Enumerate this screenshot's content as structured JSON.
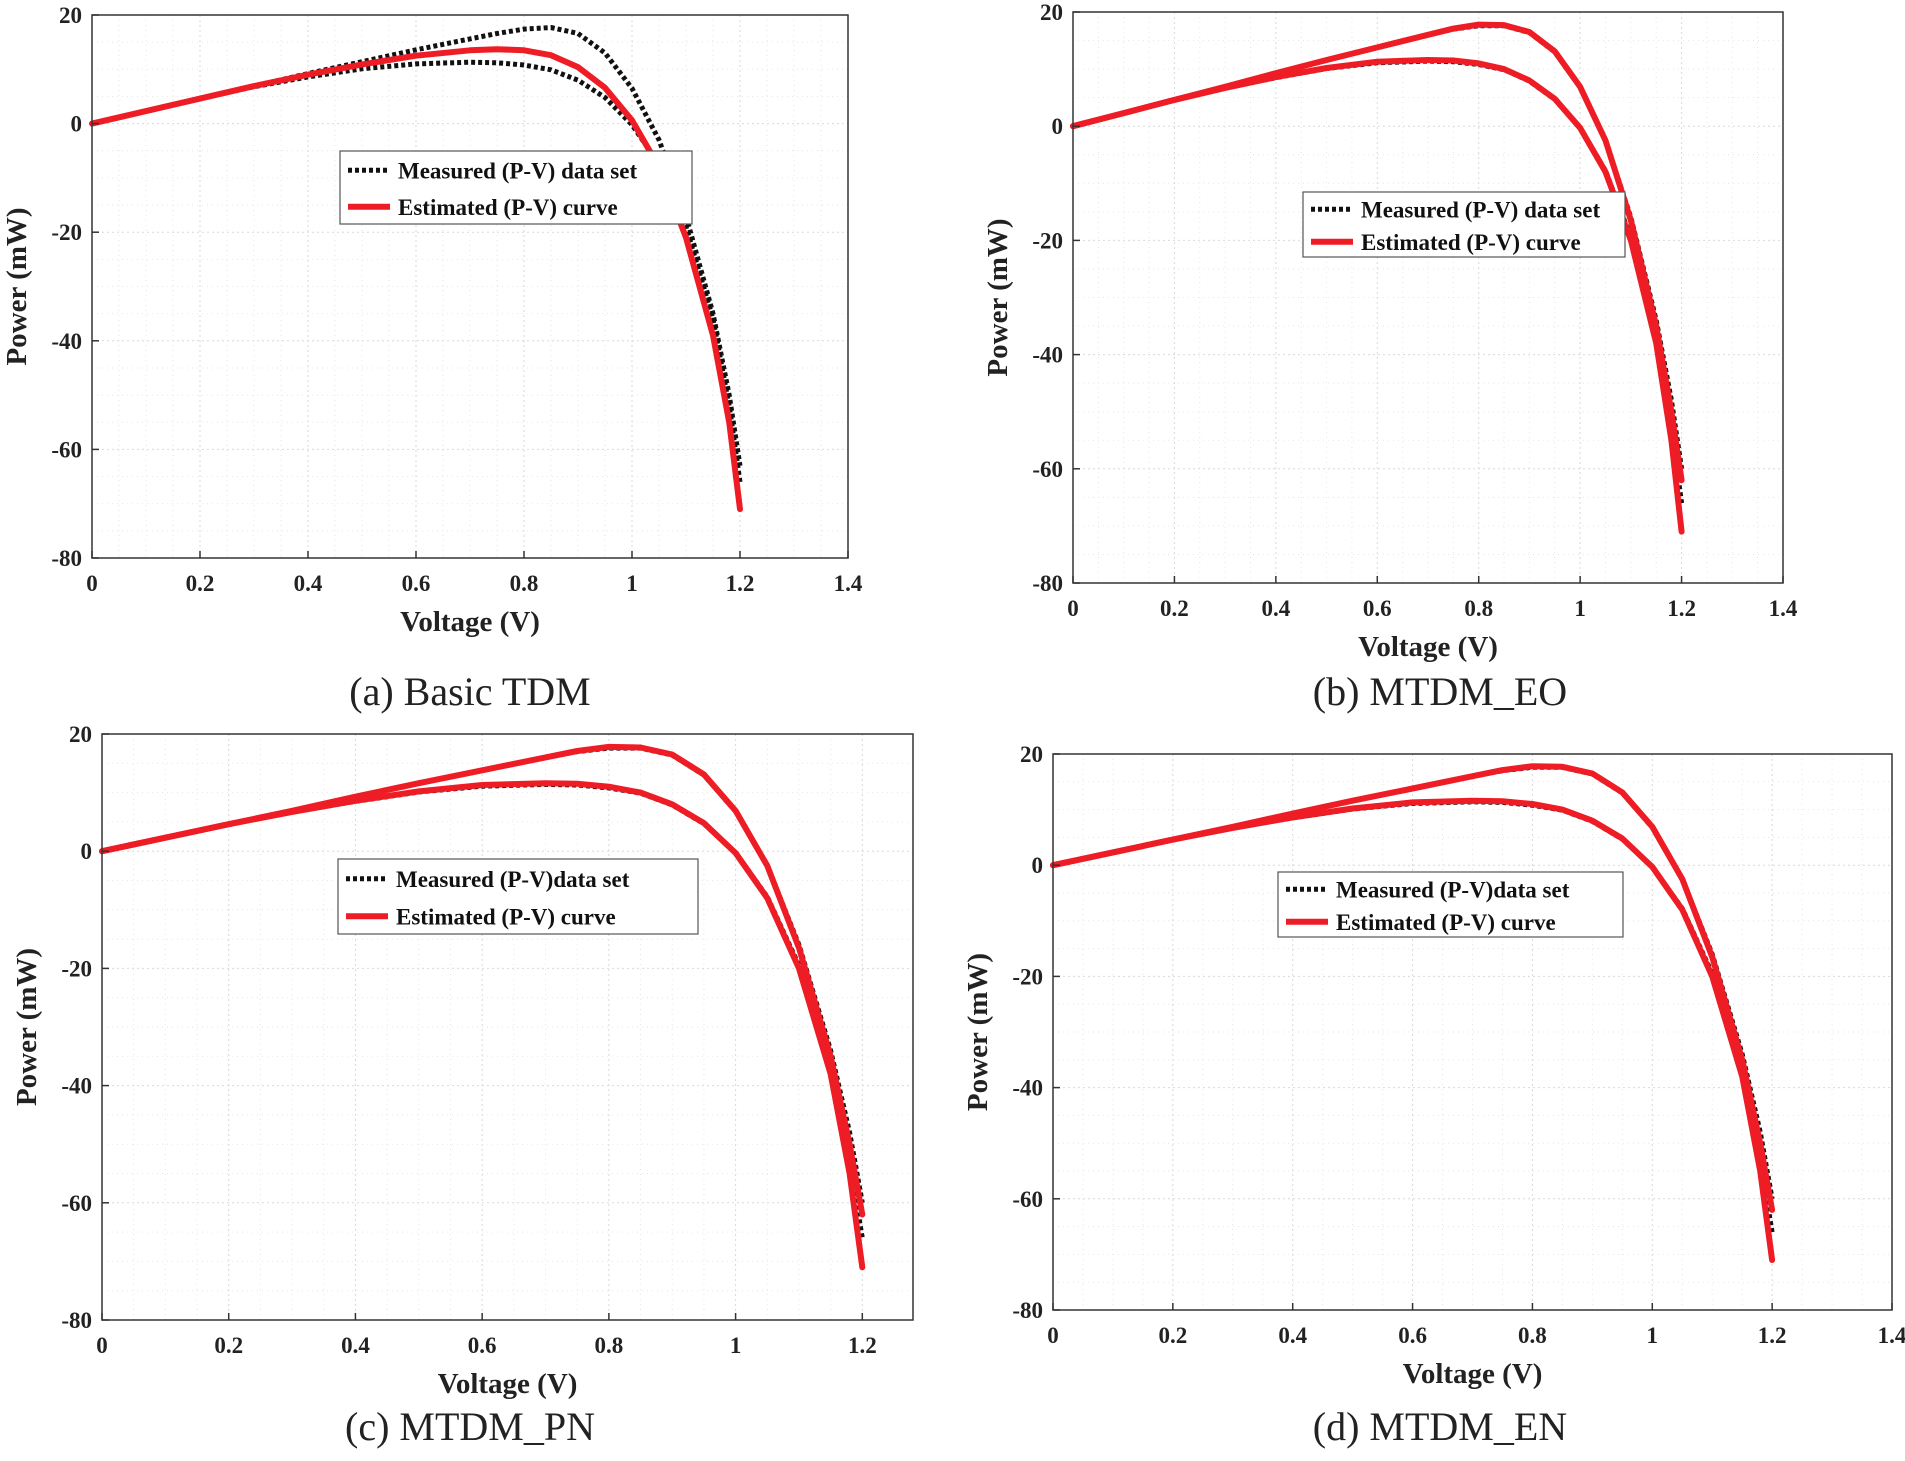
{
  "colors": {
    "measured": "#111111",
    "estimated": "#ee1c24",
    "grid": "#d9d9d9",
    "axes": "#333333"
  },
  "chart_data": [
    {
      "type": "line",
      "caption": "(a) Basic TDM",
      "xlabel": "Voltage (V)",
      "ylabel": "Power (mW)",
      "xlim": [
        0,
        1.4
      ],
      "ylim": [
        -80,
        20
      ],
      "xticks": [
        0,
        0.2,
        0.4,
        0.6,
        0.8,
        1,
        1.2,
        1.4
      ],
      "xtick_labels": [
        "0",
        "0.2",
        "0.4",
        "0.6",
        "0.8",
        "1",
        "1.2",
        "1.4"
      ],
      "yticks": [
        -80,
        -60,
        -40,
        -20,
        0,
        20
      ],
      "ytick_labels": [
        "-80",
        "-60",
        "-40",
        "-20",
        "0",
        "20"
      ],
      "grid": true,
      "legend": {
        "position": "center",
        "entries": [
          "Measured (P-V) data set",
          "Estimated (P-V) curve"
        ]
      },
      "series": [
        {
          "name": "Measured (P-V) data set",
          "style": "dotted",
          "color": "measured",
          "x": [
            0,
            0.1,
            0.2,
            0.3,
            0.4,
            0.5,
            0.6,
            0.7,
            0.75,
            0.8,
            0.85,
            0.9,
            0.95,
            1.0,
            1.05,
            1.1,
            1.15,
            1.18,
            1.2
          ],
          "y": [
            0,
            2.3,
            4.6,
            6.9,
            9.2,
            11.4,
            13.6,
            15.6,
            16.6,
            17.4,
            17.7,
            16.6,
            13.0,
            6.5,
            -3.0,
            -17.0,
            -35.0,
            -50.0,
            -63.0
          ]
        },
        {
          "name": "Measured (P-V) data set",
          "style": "dotted",
          "color": "measured",
          "x": [
            0,
            0.1,
            0.2,
            0.3,
            0.4,
            0.5,
            0.6,
            0.7,
            0.75,
            0.8,
            0.85,
            0.9,
            0.95,
            1.0,
            1.05,
            1.1,
            1.15,
            1.18,
            1.2
          ],
          "y": [
            0,
            2.3,
            4.6,
            6.8,
            8.6,
            10.1,
            11.0,
            11.3,
            11.2,
            10.8,
            9.9,
            8.0,
            4.8,
            -0.2,
            -7.5,
            -19.0,
            -36.0,
            -52.0,
            -66.0
          ]
        },
        {
          "name": "Estimated (P-V) curve",
          "style": "solid",
          "color": "estimated",
          "x": [
            0,
            0.1,
            0.2,
            0.3,
            0.4,
            0.5,
            0.6,
            0.7,
            0.75,
            0.8,
            0.85,
            0.9,
            0.95,
            1.0,
            1.05,
            1.1,
            1.15,
            1.18,
            1.2
          ],
          "y": [
            0,
            2.3,
            4.6,
            6.9,
            9.0,
            10.9,
            12.5,
            13.5,
            13.7,
            13.5,
            12.6,
            10.4,
            6.6,
            0.6,
            -8.0,
            -21.0,
            -39.0,
            -55.0,
            -71.0
          ]
        }
      ]
    },
    {
      "type": "line",
      "caption": "(b) MTDM_EO",
      "xlabel": "Voltage (V)",
      "ylabel": "Power (mW)",
      "xlim": [
        0,
        1.4
      ],
      "ylim": [
        -80,
        20
      ],
      "xticks": [
        0,
        0.2,
        0.4,
        0.6,
        0.8,
        1,
        1.2,
        1.4
      ],
      "xtick_labels": [
        "0",
        "0.2",
        "0.4",
        "0.6",
        "0.8",
        "1",
        "1.2",
        "1.4"
      ],
      "yticks": [
        -80,
        -60,
        -40,
        -20,
        0,
        20
      ],
      "ytick_labels": [
        "-80",
        "-60",
        "-40",
        "-20",
        "0",
        "20"
      ],
      "grid": true,
      "legend": {
        "position": "center-right",
        "entries": [
          "Measured (P-V) data set",
          "Estimated (P-V) curve"
        ]
      },
      "series": [
        {
          "name": "Measured (P-V) data set",
          "style": "dotted",
          "color": "measured",
          "x": [
            0,
            0.1,
            0.2,
            0.3,
            0.4,
            0.5,
            0.6,
            0.7,
            0.75,
            0.8,
            0.85,
            0.9,
            0.95,
            1.0,
            1.05,
            1.1,
            1.15,
            1.18,
            1.2
          ],
          "y": [
            0,
            2.3,
            4.6,
            6.9,
            9.3,
            11.6,
            13.8,
            16.0,
            17.0,
            17.6,
            17.6,
            16.4,
            13.0,
            6.8,
            -2.5,
            -16.0,
            -34.0,
            -48.0,
            -60.0
          ]
        },
        {
          "name": "Measured (P-V) data set",
          "style": "dotted",
          "color": "measured",
          "x": [
            0,
            0.1,
            0.2,
            0.3,
            0.4,
            0.5,
            0.6,
            0.7,
            0.75,
            0.8,
            0.85,
            0.9,
            0.95,
            1.0,
            1.05,
            1.1,
            1.15,
            1.18,
            1.2
          ],
          "y": [
            0,
            2.3,
            4.6,
            6.7,
            8.5,
            10.1,
            11.1,
            11.4,
            11.3,
            10.8,
            9.9,
            7.9,
            4.7,
            -0.3,
            -7.8,
            -19.5,
            -37.0,
            -53.0,
            -66.0
          ]
        },
        {
          "name": "Estimated (P-V) curve",
          "style": "solid",
          "color": "estimated",
          "x": [
            0,
            0.1,
            0.2,
            0.3,
            0.4,
            0.5,
            0.6,
            0.7,
            0.75,
            0.8,
            0.85,
            0.9,
            0.95,
            1.0,
            1.05,
            1.1,
            1.15,
            1.18,
            1.2
          ],
          "y": [
            0,
            2.3,
            4.6,
            6.9,
            9.3,
            11.6,
            13.8,
            16.0,
            17.1,
            17.8,
            17.7,
            16.5,
            13.1,
            6.9,
            -2.5,
            -16.5,
            -35.0,
            -50.0,
            -62.0
          ]
        },
        {
          "name": "Estimated (P-V) curve",
          "style": "solid",
          "color": "estimated",
          "x": [
            0,
            0.1,
            0.2,
            0.3,
            0.4,
            0.5,
            0.6,
            0.7,
            0.75,
            0.8,
            0.85,
            0.9,
            0.95,
            1.0,
            1.05,
            1.1,
            1.15,
            1.18,
            1.2
          ],
          "y": [
            0,
            2.3,
            4.6,
            6.7,
            8.6,
            10.2,
            11.3,
            11.6,
            11.5,
            11.0,
            10.0,
            8.0,
            4.8,
            -0.3,
            -8.0,
            -20.0,
            -38.0,
            -55.0,
            -71.0
          ]
        }
      ]
    },
    {
      "type": "line",
      "caption": "(c) MTDM_PN",
      "xlabel": "Voltage (V)",
      "ylabel": "Power (mW)",
      "xlim": [
        0,
        1.28
      ],
      "ylim": [
        -80,
        20
      ],
      "xticks": [
        0,
        0.2,
        0.4,
        0.6,
        0.8,
        1,
        1.2
      ],
      "xtick_labels": [
        "0",
        "0.2",
        "0.4",
        "0.6",
        "0.8",
        "1",
        "1.2"
      ],
      "yticks": [
        -80,
        -60,
        -40,
        -20,
        0,
        20
      ],
      "ytick_labels": [
        "-80",
        "-60",
        "-40",
        "-20",
        "0",
        "20"
      ],
      "grid": true,
      "legend": {
        "position": "center",
        "entries": [
          "Measured (P-V)data set",
          "Estimated (P-V) curve"
        ]
      },
      "series": [
        {
          "name": "Measured (P-V)data set",
          "style": "dotted",
          "color": "measured",
          "x": [
            0,
            0.1,
            0.2,
            0.3,
            0.4,
            0.5,
            0.6,
            0.7,
            0.75,
            0.8,
            0.85,
            0.9,
            0.95,
            1.0,
            1.05,
            1.1,
            1.15,
            1.18,
            1.2
          ],
          "y": [
            0,
            2.3,
            4.6,
            6.9,
            9.3,
            11.6,
            13.8,
            16.0,
            17.0,
            17.6,
            17.6,
            16.4,
            13.0,
            6.8,
            -2.5,
            -16.0,
            -34.0,
            -48.0,
            -60.0
          ]
        },
        {
          "name": "Measured (P-V)data set",
          "style": "dotted",
          "color": "measured",
          "x": [
            0,
            0.1,
            0.2,
            0.3,
            0.4,
            0.5,
            0.6,
            0.7,
            0.75,
            0.8,
            0.85,
            0.9,
            0.95,
            1.0,
            1.05,
            1.1,
            1.15,
            1.18,
            1.2
          ],
          "y": [
            0,
            2.3,
            4.6,
            6.7,
            8.5,
            10.1,
            11.1,
            11.4,
            11.3,
            10.8,
            9.9,
            7.9,
            4.7,
            -0.3,
            -7.8,
            -19.5,
            -37.0,
            -53.0,
            -66.0
          ]
        },
        {
          "name": "Estimated (P-V) curve",
          "style": "solid",
          "color": "estimated",
          "x": [
            0,
            0.1,
            0.2,
            0.3,
            0.4,
            0.5,
            0.6,
            0.7,
            0.75,
            0.8,
            0.85,
            0.9,
            0.95,
            1.0,
            1.05,
            1.1,
            1.15,
            1.18,
            1.2
          ],
          "y": [
            0,
            2.3,
            4.6,
            6.9,
            9.3,
            11.6,
            13.8,
            16.0,
            17.1,
            17.8,
            17.7,
            16.5,
            13.1,
            6.9,
            -2.5,
            -16.5,
            -35.0,
            -50.0,
            -62.0
          ]
        },
        {
          "name": "Estimated (P-V) curve",
          "style": "solid",
          "color": "estimated",
          "x": [
            0,
            0.1,
            0.2,
            0.3,
            0.4,
            0.5,
            0.6,
            0.7,
            0.75,
            0.8,
            0.85,
            0.9,
            0.95,
            1.0,
            1.05,
            1.1,
            1.15,
            1.18,
            1.2
          ],
          "y": [
            0,
            2.3,
            4.6,
            6.7,
            8.6,
            10.2,
            11.3,
            11.6,
            11.5,
            11.0,
            10.0,
            8.0,
            4.8,
            -0.3,
            -8.0,
            -20.0,
            -38.0,
            -55.0,
            -71.0
          ]
        }
      ]
    },
    {
      "type": "line",
      "caption": "(d) MTDM_EN",
      "xlabel": "Voltage (V)",
      "ylabel": "Power (mW)",
      "xlim": [
        0,
        1.4
      ],
      "ylim": [
        -80,
        20
      ],
      "xticks": [
        0,
        0.2,
        0.4,
        0.6,
        0.8,
        1,
        1.2,
        1.4
      ],
      "xtick_labels": [
        "0",
        "0.2",
        "0.4",
        "0.6",
        "0.8",
        "1",
        "1.2",
        "1.4"
      ],
      "yticks": [
        -80,
        -60,
        -40,
        -20,
        0,
        20
      ],
      "ytick_labels": [
        "-80",
        "-60",
        "-40",
        "-20",
        "0",
        "20"
      ],
      "grid": true,
      "legend": {
        "position": "center",
        "entries": [
          "Measured (P-V)data set",
          "Estimated (P-V) curve"
        ]
      },
      "series": [
        {
          "name": "Measured (P-V)data set",
          "style": "dotted",
          "color": "measured",
          "x": [
            0,
            0.1,
            0.2,
            0.3,
            0.4,
            0.5,
            0.6,
            0.7,
            0.75,
            0.8,
            0.85,
            0.9,
            0.95,
            1.0,
            1.05,
            1.1,
            1.15,
            1.18,
            1.2
          ],
          "y": [
            0,
            2.3,
            4.6,
            6.9,
            9.3,
            11.6,
            13.8,
            16.0,
            17.0,
            17.6,
            17.6,
            16.4,
            13.0,
            6.8,
            -2.5,
            -16.0,
            -34.0,
            -48.0,
            -60.0
          ]
        },
        {
          "name": "Measured (P-V)data set",
          "style": "dotted",
          "color": "measured",
          "x": [
            0,
            0.1,
            0.2,
            0.3,
            0.4,
            0.5,
            0.6,
            0.7,
            0.75,
            0.8,
            0.85,
            0.9,
            0.95,
            1.0,
            1.05,
            1.1,
            1.15,
            1.18,
            1.2
          ],
          "y": [
            0,
            2.3,
            4.6,
            6.7,
            8.5,
            10.1,
            11.1,
            11.4,
            11.3,
            10.8,
            9.9,
            7.9,
            4.7,
            -0.3,
            -7.8,
            -19.5,
            -37.0,
            -53.0,
            -66.0
          ]
        },
        {
          "name": "Estimated (P-V) curve",
          "style": "solid",
          "color": "estimated",
          "x": [
            0,
            0.1,
            0.2,
            0.3,
            0.4,
            0.5,
            0.6,
            0.7,
            0.75,
            0.8,
            0.85,
            0.9,
            0.95,
            1.0,
            1.05,
            1.1,
            1.15,
            1.18,
            1.2
          ],
          "y": [
            0,
            2.3,
            4.6,
            6.9,
            9.3,
            11.6,
            13.8,
            16.0,
            17.1,
            17.8,
            17.7,
            16.5,
            13.1,
            6.9,
            -2.5,
            -16.5,
            -35.0,
            -50.0,
            -62.0
          ]
        },
        {
          "name": "Estimated (P-V) curve",
          "style": "solid",
          "color": "estimated",
          "x": [
            0,
            0.1,
            0.2,
            0.3,
            0.4,
            0.5,
            0.6,
            0.7,
            0.75,
            0.8,
            0.85,
            0.9,
            0.95,
            1.0,
            1.05,
            1.1,
            1.15,
            1.18,
            1.2
          ],
          "y": [
            0,
            2.3,
            4.6,
            6.7,
            8.6,
            10.2,
            11.3,
            11.6,
            11.5,
            11.0,
            10.0,
            8.0,
            4.8,
            -0.3,
            -8.0,
            -20.0,
            -38.0,
            -55.0,
            -71.0
          ]
        }
      ]
    }
  ]
}
